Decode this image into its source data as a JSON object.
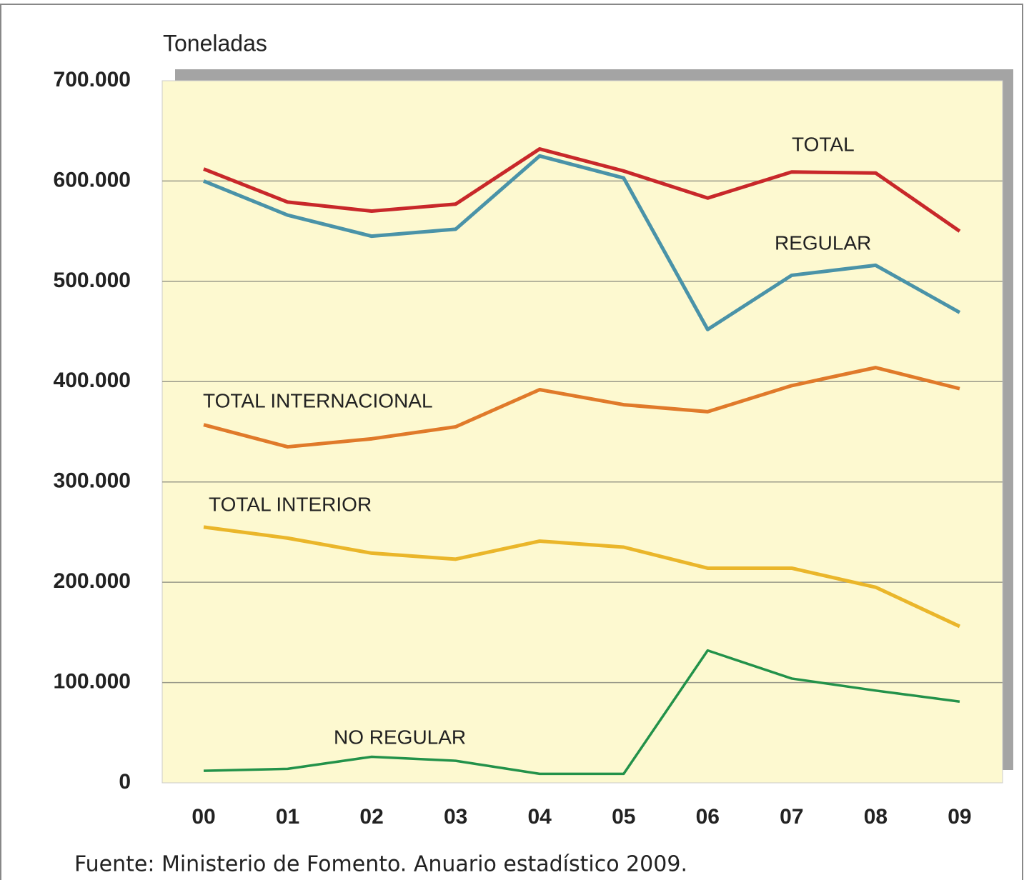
{
  "chart_data": {
    "type": "line",
    "y_label": "Toneladas",
    "source": "Fuente: Ministerio de Fomento. Anuario estadístico 2009.",
    "categories": [
      "00",
      "01",
      "02",
      "03",
      "04",
      "05",
      "06",
      "07",
      "08",
      "09"
    ],
    "series": [
      {
        "name": "TOTAL",
        "color": "#c8282a",
        "values": [
          612000,
          579000,
          570000,
          577000,
          632000,
          610000,
          583000,
          609000,
          608000,
          550000
        ]
      },
      {
        "name": "REGULAR",
        "color": "#4a93a8",
        "values": [
          600000,
          566000,
          545000,
          552000,
          625000,
          603000,
          452000,
          506000,
          516000,
          469000
        ]
      },
      {
        "name": "TOTAL INTERNACIONAL",
        "color": "#e07a2a",
        "values": [
          357000,
          335000,
          343000,
          355000,
          392000,
          377000,
          370000,
          396000,
          414000,
          393000
        ]
      },
      {
        "name": "TOTAL INTERIOR",
        "color": "#eab62a",
        "values": [
          255000,
          244000,
          229000,
          223000,
          241000,
          235000,
          214000,
          214000,
          195000,
          156000
        ]
      },
      {
        "name": "NO REGULAR",
        "color": "#23924a",
        "values": [
          12000,
          14000,
          26000,
          22000,
          9000,
          9000,
          132000,
          104000,
          92000,
          81000
        ]
      }
    ],
    "ylim": [
      0,
      700000
    ],
    "yticks": [
      0,
      {
        "value": 100000,
        "label": "100.000"
      },
      {
        "value": 200000,
        "label": "200.000"
      },
      {
        "value": 300000,
        "label": "300.000"
      },
      {
        "value": 400000,
        "label": "400.000"
      },
      {
        "value": 500000,
        "label": "500.000"
      },
      {
        "value": 600000,
        "label": "600.000"
      },
      {
        "value": 700000,
        "label": "700.000"
      }
    ],
    "grid": true
  }
}
